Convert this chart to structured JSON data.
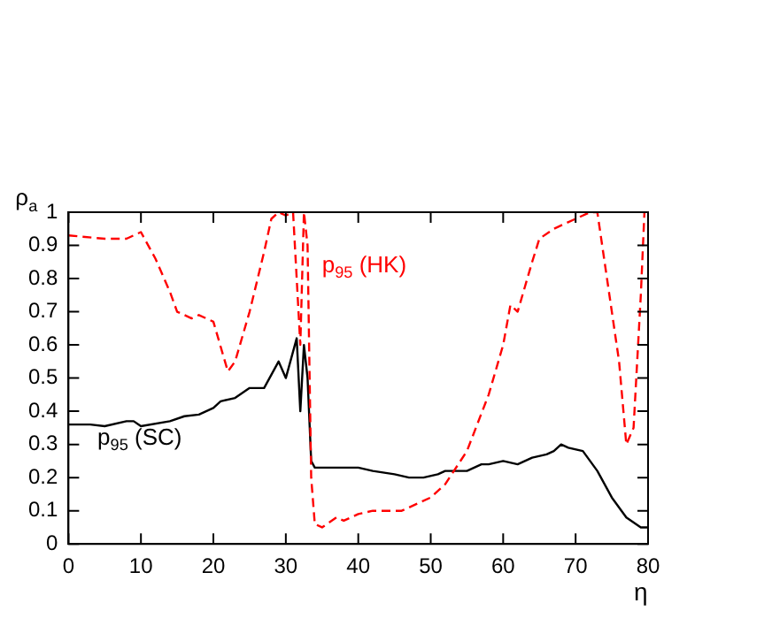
{
  "chart_data": {
    "type": "line",
    "xlabel": "η",
    "ylabel": "ρ$_{a}$",
    "xlim": [
      0,
      80
    ],
    "ylim": [
      0,
      1
    ],
    "xticks": [
      0,
      10,
      20,
      30,
      40,
      50,
      60,
      70,
      80
    ],
    "yticks": [
      0,
      0.1,
      0.2,
      0.3,
      0.4,
      0.5,
      0.6,
      0.7,
      0.8,
      0.9,
      1
    ],
    "grid": false,
    "legend": false,
    "marker": "none",
    "series": [
      {
        "name": "p$_{95}$ (HK)",
        "color": "#ff0000",
        "line_style": "dashed",
        "x": [
          0,
          5,
          8,
          10,
          12,
          14,
          15,
          17,
          18,
          20,
          22,
          23,
          25,
          27,
          28,
          29,
          30,
          31,
          32,
          32.5,
          33,
          33.5,
          34,
          35,
          37,
          38,
          40,
          42,
          46,
          48,
          50,
          52,
          55,
          58,
          60,
          61,
          62,
          64,
          65,
          67,
          70,
          72,
          73,
          74,
          76,
          77,
          78,
          79,
          79.5
        ],
        "values": [
          0.93,
          0.92,
          0.92,
          0.94,
          0.86,
          0.76,
          0.7,
          0.68,
          0.69,
          0.67,
          0.52,
          0.55,
          0.7,
          0.88,
          0.98,
          1,
          0.99,
          1,
          0.6,
          1,
          0.9,
          0.2,
          0.06,
          0.05,
          0.08,
          0.07,
          0.09,
          0.1,
          0.1,
          0.12,
          0.14,
          0.18,
          0.28,
          0.45,
          0.6,
          0.72,
          0.7,
          0.85,
          0.92,
          0.95,
          0.98,
          1,
          1,
          0.85,
          0.55,
          0.3,
          0.35,
          0.75,
          1
        ]
      },
      {
        "name": "p$_{95}$ (SC)",
        "color": "#000000",
        "line_style": "solid",
        "x": [
          0,
          3,
          5,
          8,
          9,
          10,
          14,
          16,
          18,
          20,
          21,
          23,
          25,
          26,
          27,
          28,
          29,
          30,
          31,
          31.5,
          32,
          32.5,
          33,
          33.5,
          34,
          36,
          40,
          42,
          45,
          47,
          49,
          51,
          52,
          55,
          57,
          58,
          60,
          62,
          64,
          66,
          67,
          68,
          69,
          71,
          73,
          75,
          77,
          79,
          80
        ],
        "values": [
          0.36,
          0.36,
          0.355,
          0.37,
          0.37,
          0.355,
          0.37,
          0.385,
          0.39,
          0.41,
          0.43,
          0.44,
          0.47,
          0.47,
          0.47,
          0.51,
          0.55,
          0.5,
          0.58,
          0.62,
          0.4,
          0.6,
          0.5,
          0.25,
          0.23,
          0.23,
          0.23,
          0.22,
          0.21,
          0.2,
          0.2,
          0.21,
          0.22,
          0.22,
          0.24,
          0.24,
          0.25,
          0.24,
          0.26,
          0.27,
          0.28,
          0.3,
          0.29,
          0.28,
          0.22,
          0.14,
          0.08,
          0.05,
          0.05
        ]
      }
    ]
  }
}
